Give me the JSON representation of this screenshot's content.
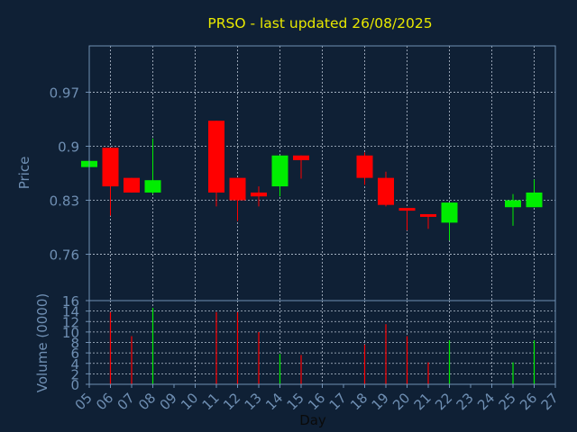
{
  "colors": {
    "background": "#0f2035",
    "axis": "#6f8fb3",
    "grid": "#b8c4d3",
    "label": "#6f8fb3",
    "title": "#e8e800",
    "up": "#00ee00",
    "down": "#ff0000",
    "day_label": "#0a0a0a"
  },
  "chart_data": [
    {
      "type": "candlestick",
      "title": "PRSO - last updated 26/08/2025",
      "ylabel": "Price",
      "ylim": [
        0.7,
        1.03
      ],
      "yticks": [
        0.76,
        0.83,
        0.9,
        0.97
      ],
      "yticklabels": [
        "0.76",
        "0.83",
        "0.9",
        "0.97"
      ],
      "grid": true,
      "candles": [
        {
          "day": "05",
          "open": 0.873,
          "close": 0.881,
          "high": 0.881,
          "low": 0.873
        },
        {
          "day": "06",
          "open": 0.898,
          "close": 0.848,
          "high": 0.898,
          "low": 0.81
        },
        {
          "day": "07",
          "open": 0.859,
          "close": 0.84,
          "high": 0.859,
          "low": 0.84
        },
        {
          "day": "08",
          "open": 0.84,
          "close": 0.856,
          "high": 0.91,
          "low": 0.838
        },
        {
          "day": "11",
          "open": 0.933,
          "close": 0.84,
          "high": 0.933,
          "low": 0.822
        },
        {
          "day": "12",
          "open": 0.859,
          "close": 0.83,
          "high": 0.859,
          "low": 0.803
        },
        {
          "day": "13",
          "open": 0.84,
          "close": 0.835,
          "high": 0.848,
          "low": 0.822
        },
        {
          "day": "14",
          "open": 0.848,
          "close": 0.888,
          "high": 0.888,
          "low": 0.835
        },
        {
          "day": "15",
          "open": 0.888,
          "close": 0.882,
          "high": 0.888,
          "low": 0.858
        },
        {
          "day": "18",
          "open": 0.888,
          "close": 0.859,
          "high": 0.892,
          "low": 0.85
        },
        {
          "day": "19",
          "open": 0.859,
          "close": 0.824,
          "high": 0.867,
          "low": 0.822
        },
        {
          "day": "20",
          "open": 0.82,
          "close": 0.817,
          "high": 0.82,
          "low": 0.791
        },
        {
          "day": "21",
          "open": 0.812,
          "close": 0.809,
          "high": 0.812,
          "low": 0.793
        },
        {
          "day": "22",
          "open": 0.801,
          "close": 0.827,
          "high": 0.827,
          "low": 0.778
        },
        {
          "day": "25",
          "open": 0.821,
          "close": 0.83,
          "high": 0.838,
          "low": 0.797
        },
        {
          "day": "26",
          "open": 0.821,
          "close": 0.84,
          "high": 0.857,
          "low": 0.821
        }
      ]
    },
    {
      "type": "bar",
      "ylabel": "Volume (0000)",
      "xlabel": "Day",
      "ylim": [
        0,
        16
      ],
      "yticks": [
        0,
        2,
        4,
        6,
        8,
        10,
        12,
        14,
        16
      ],
      "yticklabels": [
        "0",
        "2",
        "4",
        "6",
        "8",
        "10",
        "12",
        "14",
        "16"
      ],
      "xticklabels": [
        "05",
        "06",
        "07",
        "08",
        "09",
        "10",
        "11",
        "12",
        "13",
        "14",
        "15",
        "16",
        "17",
        "18",
        "19",
        "20",
        "21",
        "22",
        "23",
        "24",
        "25",
        "26",
        "27"
      ],
      "volumes": [
        {
          "day": "06",
          "value": 13.8,
          "direction": "down"
        },
        {
          "day": "07",
          "value": 9.2,
          "direction": "down"
        },
        {
          "day": "08",
          "value": 14.6,
          "direction": "up"
        },
        {
          "day": "11",
          "value": 13.8,
          "direction": "down"
        },
        {
          "day": "12",
          "value": 13.8,
          "direction": "down"
        },
        {
          "day": "13",
          "value": 10.0,
          "direction": "down"
        },
        {
          "day": "14",
          "value": 5.8,
          "direction": "up"
        },
        {
          "day": "15",
          "value": 5.6,
          "direction": "down"
        },
        {
          "day": "18",
          "value": 7.6,
          "direction": "down"
        },
        {
          "day": "19",
          "value": 11.5,
          "direction": "down"
        },
        {
          "day": "20",
          "value": 9.2,
          "direction": "down"
        },
        {
          "day": "21",
          "value": 4.2,
          "direction": "down"
        },
        {
          "day": "22",
          "value": 8.4,
          "direction": "up"
        },
        {
          "day": "25",
          "value": 4.2,
          "direction": "up"
        },
        {
          "day": "26",
          "value": 8.4,
          "direction": "up"
        }
      ]
    }
  ]
}
